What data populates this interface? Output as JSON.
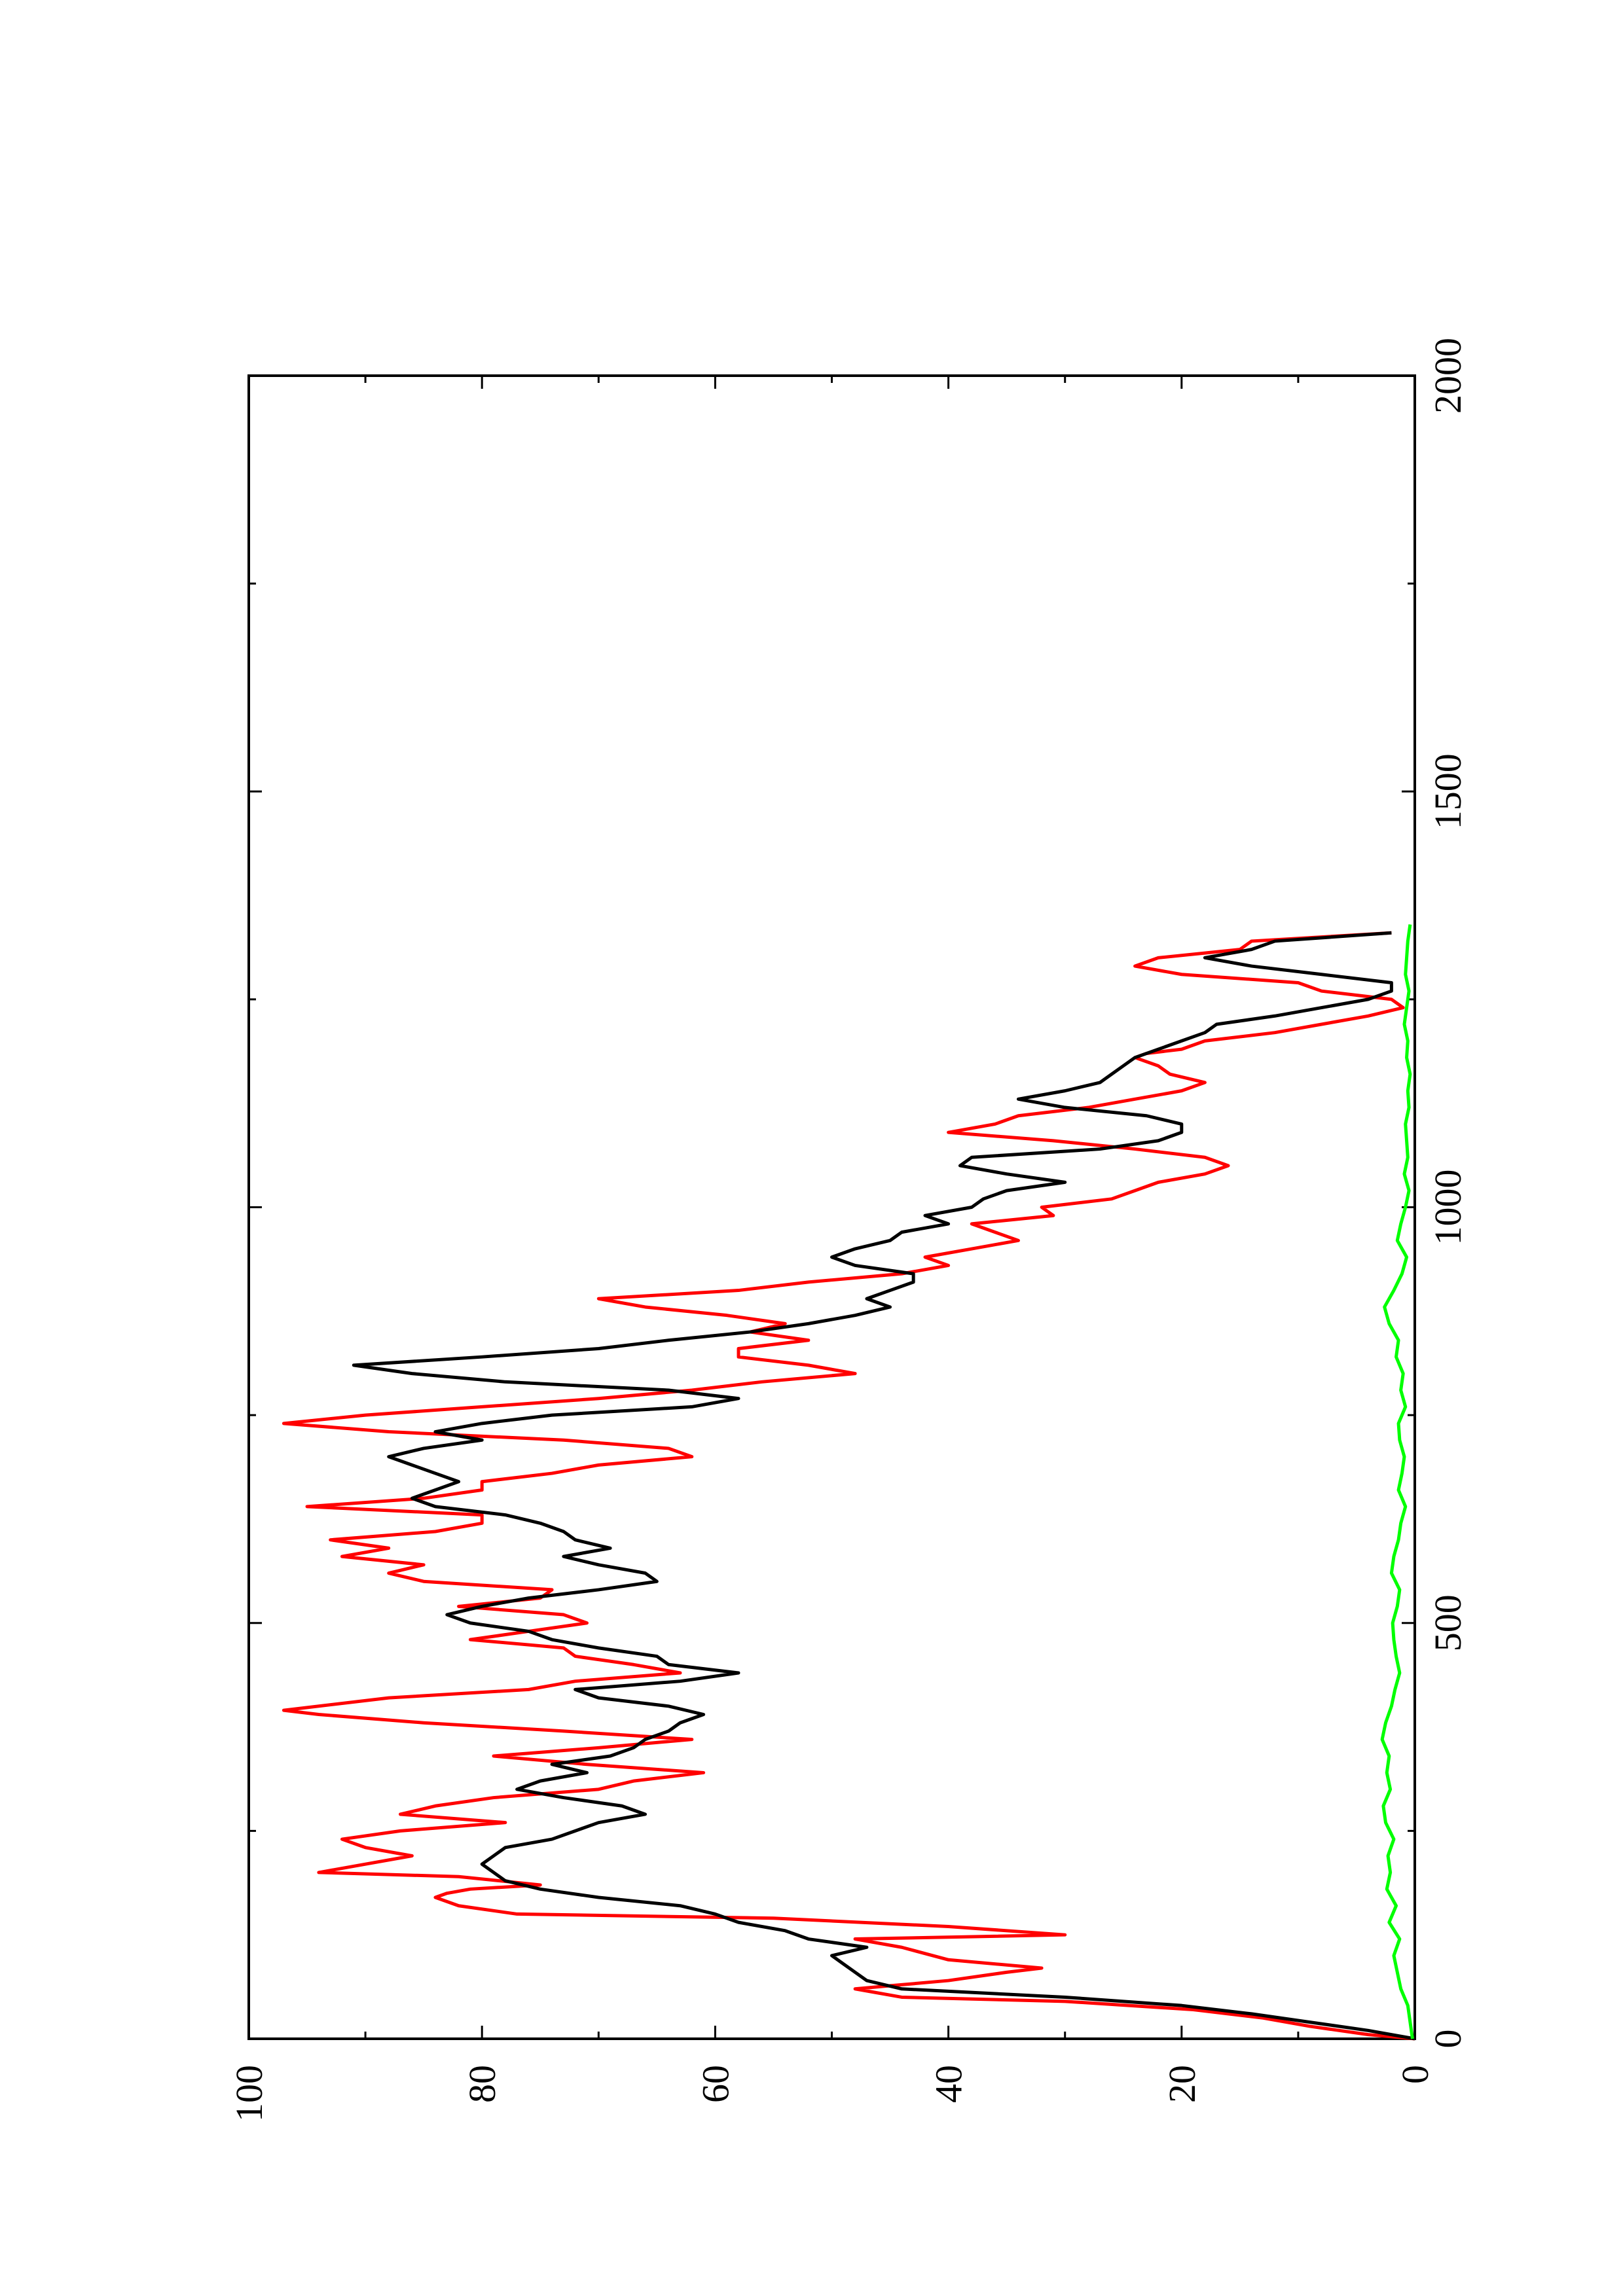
{
  "chart_data": {
    "type": "line",
    "orientation": "rotated 90 degrees counter-clockwise (x axis runs bottom to top on page)",
    "title": "",
    "xlabel": "",
    "ylabel": "",
    "xlim": [
      0,
      2000
    ],
    "ylim": [
      0,
      100
    ],
    "x_ticks": [
      0,
      500,
      1000,
      1500,
      2000
    ],
    "x_tick_labels": [
      "0",
      "500",
      "1000",
      "1500",
      "2000"
    ],
    "y_ticks": [
      0,
      20,
      40,
      60,
      80,
      100
    ],
    "y_tick_labels": [
      "0",
      "20",
      "40",
      "60",
      "80",
      "100"
    ],
    "grid": false,
    "series": [
      {
        "color": "#ff0000",
        "x": [
          0,
          5,
          15,
          25,
          35,
          45,
          50,
          60,
          65,
          70,
          80,
          85,
          95,
          110,
          120,
          125,
          135,
          145,
          150,
          160,
          170,
          175,
          180,
          185,
          195,
          200,
          210,
          220,
          230,
          240,
          250,
          260,
          270,
          280,
          290,
          300,
          310,
          320,
          330,
          340,
          350,
          360,
          370,
          380,
          390,
          395,
          410,
          420,
          430,
          440,
          450,
          460,
          470,
          480,
          490,
          500,
          510,
          520,
          530,
          540,
          550,
          560,
          570,
          580,
          590,
          600,
          610,
          620,
          630,
          640,
          650,
          660,
          670,
          680,
          690,
          700,
          710,
          720,
          730,
          740,
          750,
          760,
          770,
          780,
          790,
          800,
          810,
          820,
          830,
          840,
          850,
          860,
          870,
          880,
          890,
          900,
          910,
          920,
          930,
          940,
          950,
          960,
          970,
          980,
          990,
          1000,
          1010,
          1020,
          1030,
          1040,
          1050,
          1060,
          1070,
          1080,
          1090,
          1100,
          1110,
          1120,
          1130,
          1140,
          1150,
          1160,
          1170,
          1180,
          1185,
          1190,
          1200,
          1210,
          1220,
          1230,
          1240,
          1250,
          1260,
          1270,
          1280,
          1290,
          1300,
          1310,
          1320,
          1330
        ],
        "y": [
          0,
          4,
          9,
          13,
          19,
          30,
          44,
          48,
          44,
          40,
          35,
          32,
          40,
          44,
          48,
          30,
          40,
          55,
          77,
          82,
          84,
          83,
          81,
          75,
          82,
          94,
          90,
          86,
          90,
          92,
          87,
          78,
          87,
          84,
          79,
          70,
          67,
          61,
          71,
          79,
          70,
          62,
          73,
          85,
          94,
          97,
          88,
          76,
          72,
          63,
          67,
          72,
          73,
          81,
          76,
          71,
          73,
          82,
          75,
          74,
          85,
          88,
          85,
          92,
          88,
          93,
          84,
          80,
          80,
          95,
          85,
          80,
          80,
          74,
          70,
          62,
          64,
          73,
          88,
          97,
          90,
          80,
          70,
          62,
          56,
          48,
          52,
          58,
          58,
          52,
          57,
          54,
          59,
          66,
          70,
          58,
          52,
          44,
          40,
          42,
          38,
          34,
          36,
          38,
          31,
          32,
          26,
          24,
          22,
          18,
          16,
          18,
          24,
          31,
          40,
          36,
          34,
          28,
          24,
          20,
          18,
          21,
          22,
          24,
          23,
          20,
          18,
          12,
          8,
          4,
          1,
          2,
          8,
          10,
          20,
          24,
          22,
          15,
          14,
          2
        ]
      },
      {
        "color": "#000000",
        "x": [
          0,
          10,
          20,
          30,
          40,
          50,
          60,
          70,
          80,
          90,
          100,
          110,
          120,
          130,
          140,
          150,
          160,
          170,
          180,
          190,
          200,
          210,
          220,
          230,
          240,
          250,
          260,
          270,
          280,
          290,
          300,
          310,
          320,
          330,
          340,
          350,
          360,
          370,
          380,
          390,
          400,
          410,
          420,
          430,
          440,
          450,
          460,
          470,
          480,
          490,
          500,
          510,
          520,
          530,
          540,
          550,
          560,
          570,
          580,
          590,
          600,
          610,
          620,
          630,
          640,
          650,
          660,
          670,
          680,
          690,
          700,
          710,
          720,
          730,
          740,
          750,
          760,
          770,
          780,
          790,
          800,
          810,
          820,
          830,
          840,
          850,
          860,
          870,
          880,
          890,
          900,
          910,
          920,
          930,
          940,
          950,
          960,
          970,
          980,
          990,
          1000,
          1010,
          1020,
          1030,
          1040,
          1050,
          1060,
          1070,
          1080,
          1090,
          1100,
          1110,
          1120,
          1130,
          1140,
          1150,
          1160,
          1170,
          1180,
          1190,
          1200,
          1210,
          1220,
          1230,
          1240,
          1250,
          1260,
          1270,
          1280,
          1290,
          1300,
          1310,
          1320,
          1330
        ],
        "y": [
          0,
          4,
          9,
          14,
          20,
          30,
          44,
          47,
          48,
          49,
          50,
          47,
          52,
          54,
          58,
          60,
          63,
          70,
          75,
          78,
          79,
          80,
          79,
          78,
          74,
          72,
          70,
          66,
          68,
          73,
          77,
          75,
          71,
          74,
          69,
          67,
          66,
          64,
          63,
          61,
          64,
          70,
          72,
          63,
          58,
          64,
          65,
          70,
          74,
          76,
          81,
          83,
          80,
          76,
          70,
          65,
          66,
          70,
          73,
          69,
          72,
          73,
          75,
          78,
          84,
          86,
          84,
          82,
          84,
          86,
          88,
          85,
          80,
          84,
          80,
          74,
          62,
          58,
          64,
          78,
          86,
          91,
          80,
          70,
          64,
          57,
          52,
          48,
          45,
          47,
          45,
          43,
          43,
          48,
          50,
          48,
          45,
          44,
          40,
          42,
          38,
          37,
          35,
          30,
          35,
          39,
          38,
          27,
          22,
          20,
          20,
          23,
          30,
          34,
          30,
          27,
          26,
          25,
          24,
          22,
          20,
          18,
          17,
          12,
          8,
          4,
          2,
          2,
          8,
          14,
          18,
          14,
          12,
          2
        ]
      },
      {
        "color": "#00ff00",
        "x": [
          0,
          20,
          40,
          60,
          80,
          100,
          120,
          140,
          160,
          180,
          200,
          220,
          240,
          260,
          280,
          300,
          320,
          340,
          360,
          380,
          400,
          420,
          440,
          460,
          480,
          500,
          520,
          540,
          560,
          580,
          600,
          620,
          640,
          660,
          680,
          700,
          720,
          740,
          760,
          780,
          800,
          820,
          840,
          860,
          880,
          900,
          920,
          940,
          960,
          980,
          1000,
          1020,
          1040,
          1060,
          1080,
          1100,
          1120,
          1140,
          1160,
          1180,
          1200,
          1220,
          1240,
          1260,
          1280,
          1300,
          1320,
          1340
        ],
        "y": [
          0.2,
          0.4,
          0.6,
          1.2,
          1.5,
          1.8,
          1.3,
          2.2,
          1.6,
          2.4,
          2.1,
          2.3,
          1.8,
          2.5,
          2.7,
          2.1,
          2.4,
          2.2,
          2.8,
          2.5,
          2.0,
          1.7,
          1.3,
          1.6,
          1.8,
          1.9,
          1.5,
          1.3,
          2.0,
          1.8,
          1.4,
          1.2,
          0.8,
          1.4,
          1.1,
          0.9,
          1.3,
          1.4,
          0.8,
          1.2,
          1.0,
          1.6,
          1.4,
          2.2,
          2.6,
          1.8,
          1.1,
          0.7,
          1.5,
          1.2,
          0.8,
          0.5,
          0.9,
          0.6,
          0.7,
          0.8,
          0.5,
          0.6,
          0.4,
          0.7,
          0.6,
          0.9,
          0.7,
          0.5,
          0.8,
          0.7,
          0.6,
          0.4
        ]
      }
    ]
  }
}
